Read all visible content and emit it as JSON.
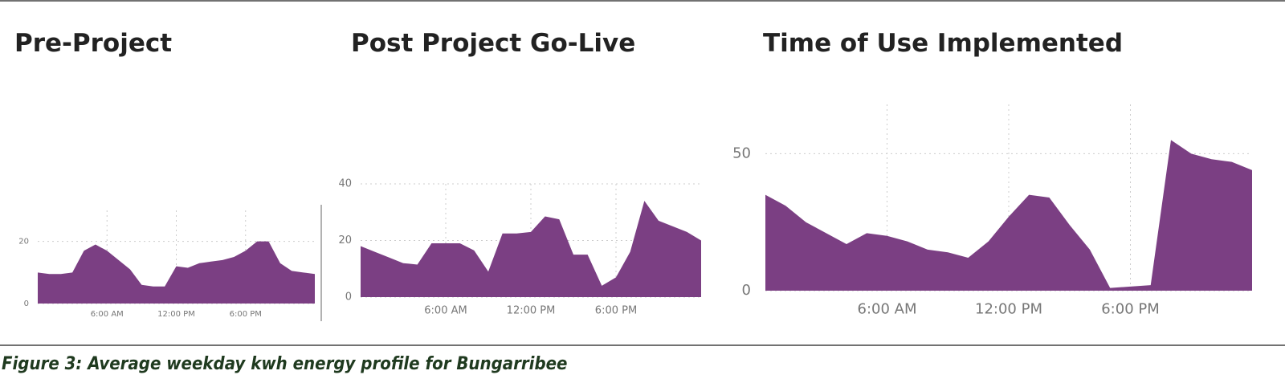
{
  "caption": "Figure 3: Average weekday kwh energy profile for Bungarribee",
  "chart_data": [
    {
      "type": "area",
      "title": "Pre-Project",
      "color": "#7b3f83",
      "grid": true,
      "x": [
        0,
        1,
        2,
        3,
        4,
        5,
        6,
        7,
        8,
        9,
        10,
        11,
        12,
        13,
        14,
        15,
        16,
        17,
        18,
        19,
        20,
        21,
        22,
        23,
        24
      ],
      "values": [
        10,
        9.5,
        9.5,
        10,
        17,
        19,
        17,
        14,
        11,
        6,
        5.5,
        5.5,
        12,
        11.5,
        13,
        13.5,
        14,
        15,
        17,
        20,
        20,
        13,
        10.5,
        10,
        9.5
      ],
      "xlim": [
        0,
        24
      ],
      "ylim": [
        0,
        30
      ],
      "yticks": [
        0,
        20
      ],
      "xticks": [
        {
          "value": 6,
          "label": "6:00 AM"
        },
        {
          "value": 12,
          "label": "12:00 PM"
        },
        {
          "value": 18,
          "label": "6:00 PM"
        }
      ]
    },
    {
      "type": "area",
      "title": "Post Project Go-Live",
      "color": "#7b3f83",
      "grid": true,
      "x": [
        0,
        1,
        2,
        3,
        4,
        5,
        6,
        7,
        8,
        9,
        10,
        11,
        12,
        13,
        14,
        15,
        16,
        17,
        18,
        19,
        20,
        21,
        22,
        23,
        24
      ],
      "values": [
        18,
        16,
        14,
        12,
        11.5,
        19,
        19,
        19,
        16.5,
        9,
        22.5,
        22.5,
        23,
        28.5,
        27.5,
        15,
        15,
        4,
        7,
        16,
        34,
        27,
        25,
        23,
        20
      ],
      "xlim": [
        0,
        24
      ],
      "ylim": [
        0,
        40
      ],
      "yticks": [
        0,
        20,
        40
      ],
      "xticks": [
        {
          "value": 6,
          "label": "6:00 AM"
        },
        {
          "value": 12,
          "label": "12:00 PM"
        },
        {
          "value": 18,
          "label": "6:00 PM"
        }
      ]
    },
    {
      "type": "area",
      "title": "Time of Use Implemented",
      "color": "#7b3f83",
      "grid": true,
      "x": [
        0,
        1,
        2,
        3,
        4,
        5,
        6,
        7,
        8,
        9,
        10,
        11,
        12,
        13,
        14,
        15,
        16,
        17,
        18,
        19,
        20,
        21,
        22,
        23,
        24
      ],
      "values": [
        35,
        31,
        25,
        21,
        17,
        21,
        20,
        18,
        15,
        14,
        12,
        18,
        27,
        35,
        34,
        24,
        15,
        1,
        1.5,
        2,
        55,
        50,
        48,
        47,
        44
      ],
      "xlim": [
        0,
        24
      ],
      "ylim": [
        0,
        68
      ],
      "yticks": [
        0,
        50
      ],
      "xticks": [
        {
          "value": 6,
          "label": "6:00 AM"
        },
        {
          "value": 12,
          "label": "12:00 PM"
        },
        {
          "value": 18,
          "label": "6:00 PM"
        }
      ]
    }
  ]
}
